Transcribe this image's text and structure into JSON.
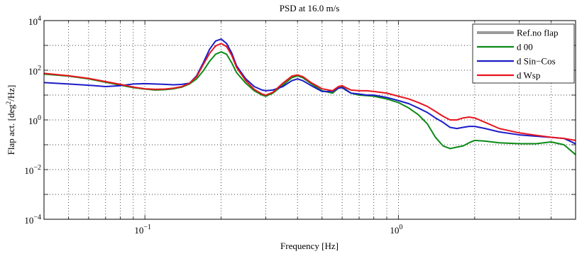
{
  "chart_data": {
    "type": "line",
    "title": "PSD at 16.0 m/s",
    "xlabel": "Frequency [Hz]",
    "ylabel": {
      "main": "Flap act. [deg",
      "sup": "2",
      "tail": "/Hz]"
    },
    "xscale": "log",
    "yscale": "log",
    "xlim": [
      0.04,
      5
    ],
    "ylim": [
      0.0001,
      10000
    ],
    "grid": true,
    "legend_position": "top-right",
    "x_ticks": [
      {
        "value": 0.1,
        "base": "10",
        "exp": "−1"
      },
      {
        "value": 1,
        "base": "10",
        "exp": "0"
      }
    ],
    "y_ticks": [
      {
        "value": 0.0001,
        "base": "10",
        "exp": "−4"
      },
      {
        "value": 0.01,
        "base": "10",
        "exp": "−2"
      },
      {
        "value": 1,
        "base": "10",
        "exp": "0"
      },
      {
        "value": 100,
        "base": "10",
        "exp": "2"
      },
      {
        "value": 10000,
        "base": "10",
        "exp": "4"
      }
    ],
    "series": [
      {
        "name": "Ref.no flap",
        "color": "#9a9a9a",
        "points": []
      },
      {
        "name": "d 00",
        "color": "#0b8a17",
        "points": [
          [
            0.04,
            70
          ],
          [
            0.05,
            58
          ],
          [
            0.06,
            45
          ],
          [
            0.07,
            33
          ],
          [
            0.08,
            25
          ],
          [
            0.09,
            20
          ],
          [
            0.1,
            17.5
          ],
          [
            0.11,
            16
          ],
          [
            0.12,
            16.5
          ],
          [
            0.13,
            18
          ],
          [
            0.14,
            21
          ],
          [
            0.15,
            28
          ],
          [
            0.16,
            45
          ],
          [
            0.17,
            95
          ],
          [
            0.18,
            230
          ],
          [
            0.19,
            440
          ],
          [
            0.2,
            550
          ],
          [
            0.21,
            440
          ],
          [
            0.22,
            200
          ],
          [
            0.23,
            80
          ],
          [
            0.25,
            30
          ],
          [
            0.27,
            15
          ],
          [
            0.29,
            10
          ],
          [
            0.3,
            9
          ],
          [
            0.32,
            12
          ],
          [
            0.35,
            25
          ],
          [
            0.38,
            50
          ],
          [
            0.4,
            60
          ],
          [
            0.42,
            50
          ],
          [
            0.45,
            30
          ],
          [
            0.5,
            15
          ],
          [
            0.55,
            12
          ],
          [
            0.58,
            19
          ],
          [
            0.6,
            21
          ],
          [
            0.62,
            17
          ],
          [
            0.65,
            12
          ],
          [
            0.7,
            10
          ],
          [
            0.75,
            9.5
          ],
          [
            0.8,
            9
          ],
          [
            0.9,
            7
          ],
          [
            1,
            5
          ],
          [
            1.1,
            3
          ],
          [
            1.2,
            1.6
          ],
          [
            1.3,
            0.7
          ],
          [
            1.4,
            0.2
          ],
          [
            1.5,
            0.09
          ],
          [
            1.6,
            0.07
          ],
          [
            1.7,
            0.08
          ],
          [
            1.8,
            0.09
          ],
          [
            1.9,
            0.12
          ],
          [
            2,
            0.15
          ],
          [
            2.2,
            0.14
          ],
          [
            2.5,
            0.12
          ],
          [
            3,
            0.11
          ],
          [
            3.5,
            0.11
          ],
          [
            4,
            0.13
          ],
          [
            4.5,
            0.1
          ],
          [
            5,
            0.04
          ]
        ]
      },
      {
        "name": "d Sin−Cos",
        "color": "#1c1cc8",
        "points": [
          [
            0.04,
            32
          ],
          [
            0.05,
            28
          ],
          [
            0.06,
            25
          ],
          [
            0.07,
            22
          ],
          [
            0.08,
            24
          ],
          [
            0.09,
            28
          ],
          [
            0.1,
            29
          ],
          [
            0.11,
            28
          ],
          [
            0.12,
            27
          ],
          [
            0.13,
            26
          ],
          [
            0.14,
            27
          ],
          [
            0.15,
            30
          ],
          [
            0.16,
            60
          ],
          [
            0.17,
            200
          ],
          [
            0.18,
            700
          ],
          [
            0.19,
            1500
          ],
          [
            0.2,
            1800
          ],
          [
            0.21,
            1200
          ],
          [
            0.22,
            500
          ],
          [
            0.23,
            150
          ],
          [
            0.25,
            45
          ],
          [
            0.27,
            22
          ],
          [
            0.29,
            16
          ],
          [
            0.3,
            15
          ],
          [
            0.32,
            16
          ],
          [
            0.35,
            22
          ],
          [
            0.38,
            38
          ],
          [
            0.4,
            45
          ],
          [
            0.42,
            38
          ],
          [
            0.45,
            25
          ],
          [
            0.5,
            14
          ],
          [
            0.55,
            14
          ],
          [
            0.58,
            19
          ],
          [
            0.6,
            20
          ],
          [
            0.62,
            16
          ],
          [
            0.65,
            12
          ],
          [
            0.7,
            11
          ],
          [
            0.75,
            10
          ],
          [
            0.8,
            10
          ],
          [
            0.9,
            8
          ],
          [
            1,
            6
          ],
          [
            1.1,
            4.5
          ],
          [
            1.2,
            3
          ],
          [
            1.3,
            2
          ],
          [
            1.4,
            1.2
          ],
          [
            1.5,
            0.8
          ],
          [
            1.6,
            0.5
          ],
          [
            1.7,
            0.45
          ],
          [
            1.8,
            0.5
          ],
          [
            1.9,
            0.55
          ],
          [
            2,
            0.55
          ],
          [
            2.2,
            0.45
          ],
          [
            2.5,
            0.33
          ],
          [
            3,
            0.25
          ],
          [
            3.5,
            0.22
          ],
          [
            4,
            0.2
          ],
          [
            4.5,
            0.18
          ],
          [
            5,
            0.11
          ]
        ]
      },
      {
        "name": "d Wsp",
        "color": "#e8141e",
        "points": [
          [
            0.04,
            75
          ],
          [
            0.05,
            60
          ],
          [
            0.06,
            47
          ],
          [
            0.07,
            35
          ],
          [
            0.08,
            27
          ],
          [
            0.09,
            21
          ],
          [
            0.1,
            18
          ],
          [
            0.11,
            17
          ],
          [
            0.12,
            17.5
          ],
          [
            0.13,
            19
          ],
          [
            0.14,
            22
          ],
          [
            0.15,
            30
          ],
          [
            0.16,
            55
          ],
          [
            0.17,
            170
          ],
          [
            0.18,
            480
          ],
          [
            0.19,
            950
          ],
          [
            0.2,
            1200
          ],
          [
            0.21,
            900
          ],
          [
            0.22,
            400
          ],
          [
            0.23,
            130
          ],
          [
            0.25,
            38
          ],
          [
            0.27,
            17
          ],
          [
            0.29,
            11
          ],
          [
            0.3,
            10
          ],
          [
            0.32,
            13
          ],
          [
            0.35,
            30
          ],
          [
            0.38,
            58
          ],
          [
            0.4,
            65
          ],
          [
            0.42,
            55
          ],
          [
            0.45,
            33
          ],
          [
            0.5,
            18
          ],
          [
            0.55,
            15
          ],
          [
            0.58,
            22
          ],
          [
            0.6,
            24
          ],
          [
            0.62,
            20
          ],
          [
            0.65,
            16
          ],
          [
            0.7,
            15
          ],
          [
            0.75,
            15
          ],
          [
            0.8,
            14
          ],
          [
            0.9,
            12
          ],
          [
            1,
            9
          ],
          [
            1.1,
            7
          ],
          [
            1.2,
            5
          ],
          [
            1.3,
            3.5
          ],
          [
            1.4,
            2.2
          ],
          [
            1.5,
            1.4
          ],
          [
            1.6,
            1
          ],
          [
            1.7,
            1
          ],
          [
            1.8,
            1.2
          ],
          [
            1.9,
            1.3
          ],
          [
            2,
            1.2
          ],
          [
            2.2,
            0.8
          ],
          [
            2.5,
            0.45
          ],
          [
            3,
            0.3
          ],
          [
            3.5,
            0.24
          ],
          [
            4,
            0.2
          ],
          [
            4.5,
            0.18
          ],
          [
            5,
            0.15
          ]
        ]
      }
    ]
  }
}
